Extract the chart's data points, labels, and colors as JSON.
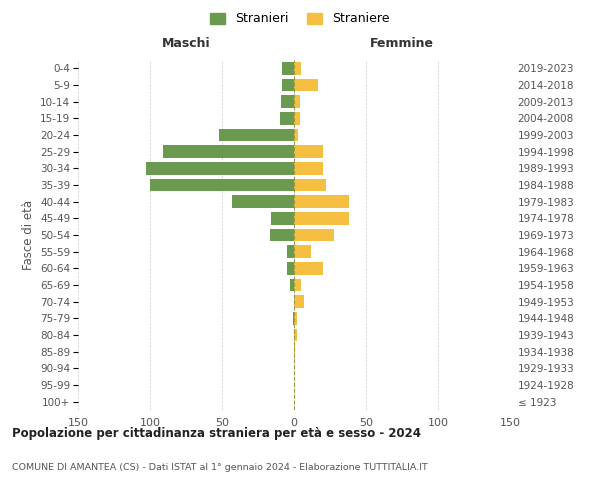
{
  "age_groups": [
    "100+",
    "95-99",
    "90-94",
    "85-89",
    "80-84",
    "75-79",
    "70-74",
    "65-69",
    "60-64",
    "55-59",
    "50-54",
    "45-49",
    "40-44",
    "35-39",
    "30-34",
    "25-29",
    "20-24",
    "15-19",
    "10-14",
    "5-9",
    "0-4"
  ],
  "birth_years": [
    "≤ 1923",
    "1924-1928",
    "1929-1933",
    "1934-1938",
    "1939-1943",
    "1944-1948",
    "1949-1953",
    "1954-1958",
    "1959-1963",
    "1964-1968",
    "1969-1973",
    "1974-1978",
    "1979-1983",
    "1984-1988",
    "1989-1993",
    "1994-1998",
    "1999-2003",
    "2004-2008",
    "2009-2013",
    "2014-2018",
    "2019-2023"
  ],
  "stranieri": [
    0,
    0,
    0,
    0,
    0,
    1,
    0,
    3,
    5,
    5,
    17,
    16,
    43,
    100,
    103,
    91,
    52,
    10,
    9,
    8,
    8
  ],
  "straniere": [
    0,
    0,
    0,
    1,
    2,
    2,
    7,
    5,
    20,
    12,
    28,
    38,
    38,
    22,
    20,
    20,
    3,
    4,
    4,
    17,
    5
  ],
  "color_stranieri": "#6a9a50",
  "color_straniere": "#f5c041",
  "xlim": 150,
  "title": "Popolazione per cittadinanza straniera per età e sesso - 2024",
  "subtitle": "COMUNE DI AMANTEA (CS) - Dati ISTAT al 1° gennaio 2024 - Elaborazione TUTTITALIA.IT",
  "xlabel_left": "Maschi",
  "xlabel_right": "Femmine",
  "ylabel_left": "Fasce di età",
  "legend_stranieri": "Stranieri",
  "legend_straniere": "Straniere",
  "bg_color": "#ffffff",
  "grid_color": "#cccccc",
  "tick_label_color": "#555555",
  "title_color": "#222222",
  "subtitle_color": "#555555"
}
